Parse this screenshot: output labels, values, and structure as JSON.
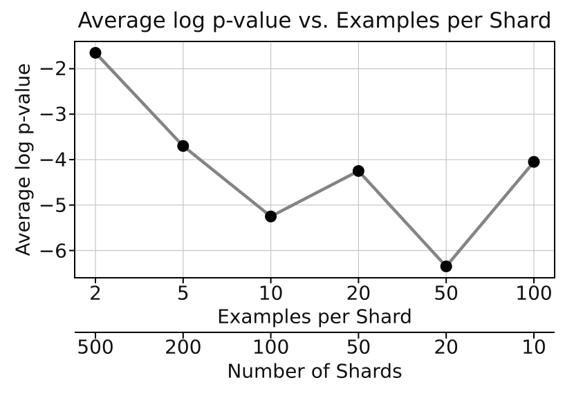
{
  "chart_data": {
    "type": "line",
    "title": "Average log p-value vs. Examples per Shard",
    "xlabel": "Examples per Shard",
    "ylabel": "Average log p-value",
    "secondary_xlabel": "Number of Shards",
    "x_tick_labels": [
      "2",
      "5",
      "10",
      "20",
      "50",
      "100"
    ],
    "secondary_x_tick_labels": [
      "500",
      "200",
      "100",
      "50",
      "20",
      "10"
    ],
    "y_tick_labels": [
      "−2",
      "−3",
      "−4",
      "−5",
      "−6"
    ],
    "y_ticks": [
      -2,
      -3,
      -4,
      -5,
      -6
    ],
    "x": [
      2,
      5,
      10,
      20,
      50,
      100
    ],
    "values": [
      -1.65,
      -3.7,
      -5.25,
      -4.25,
      -6.35,
      -4.05
    ],
    "series_name": "Average log p-value",
    "ylim": [
      -6.6,
      -1.4
    ],
    "x_spacing": "equal",
    "grid": true,
    "legend": "none",
    "colors": {
      "line": "#848484",
      "marker": "#000000",
      "grid": "#c9c9c9",
      "spine": "#000000",
      "text": "#111111"
    }
  }
}
